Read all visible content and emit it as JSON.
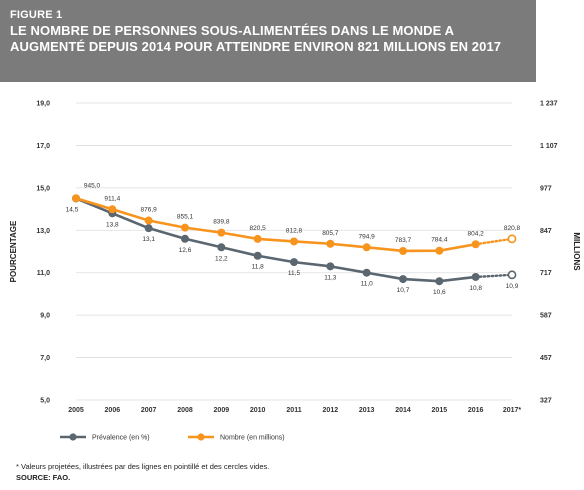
{
  "figure": {
    "label": "FIGURE 1",
    "title": "LE NOMBRE DE PERSONNES SOUS-ALIMENTÉES DANS LE MONDE A AUGMENTÉ DEPUIS 2014 POUR ATTEINDRE ENVIRON 821 MILLIONS EN 2017",
    "footnote": "* Valeurs projetées, illustrées par des lignes en pointillé et des cercles vides.",
    "source": "SOURCE: FAO."
  },
  "colors": {
    "header_bg": "#7a7b7a",
    "prevalence": "#5a6670",
    "nombre": "#f7941d",
    "grid": "#dddddd"
  },
  "chart_data": {
    "type": "line",
    "categories": [
      "2005",
      "2006",
      "2007",
      "2008",
      "2009",
      "2010",
      "2011",
      "2012",
      "2013",
      "2014",
      "2015",
      "2016",
      "2017*"
    ],
    "ylabel": "POURCENTAGE",
    "y2label": "MILLIONS",
    "ylim": [
      5.0,
      19.0
    ],
    "y2lim": [
      327,
      1237
    ],
    "yticks": [
      "5,0",
      "7,0",
      "9,0",
      "11,0",
      "13,0",
      "15,0",
      "17,0",
      "19,0"
    ],
    "y2ticks": [
      "327",
      "457",
      "587",
      "717",
      "847",
      "977",
      "1 107",
      "1 237"
    ],
    "grid": true,
    "legend_position": "bottom",
    "projected_from_index": 11,
    "series": [
      {
        "name": "Prévalence (en %)",
        "axis": "left",
        "values": [
          14.5,
          13.8,
          13.1,
          12.6,
          12.2,
          11.8,
          11.5,
          11.3,
          11.0,
          10.7,
          10.6,
          10.8,
          10.9
        ],
        "labels": [
          "14,5",
          "13,8",
          "13,1",
          "12,6",
          "12,2",
          "11,8",
          "11,5",
          "11,3",
          "11,0",
          "10,7",
          "10,6",
          "10,8",
          "10,9"
        ]
      },
      {
        "name": "Nombre (en millions)",
        "axis": "right",
        "values": [
          945.0,
          911.4,
          876.9,
          855.1,
          839.8,
          820.5,
          812.8,
          805.7,
          794.9,
          783.7,
          784.4,
          804.2,
          820.8
        ],
        "labels": [
          "945,0",
          "911,4",
          "876,9",
          "855,1",
          "839,8",
          "820,5",
          "812,8",
          "805,7",
          "794,9",
          "783,7",
          "784,4",
          "804,2",
          "820,8"
        ]
      }
    ]
  }
}
